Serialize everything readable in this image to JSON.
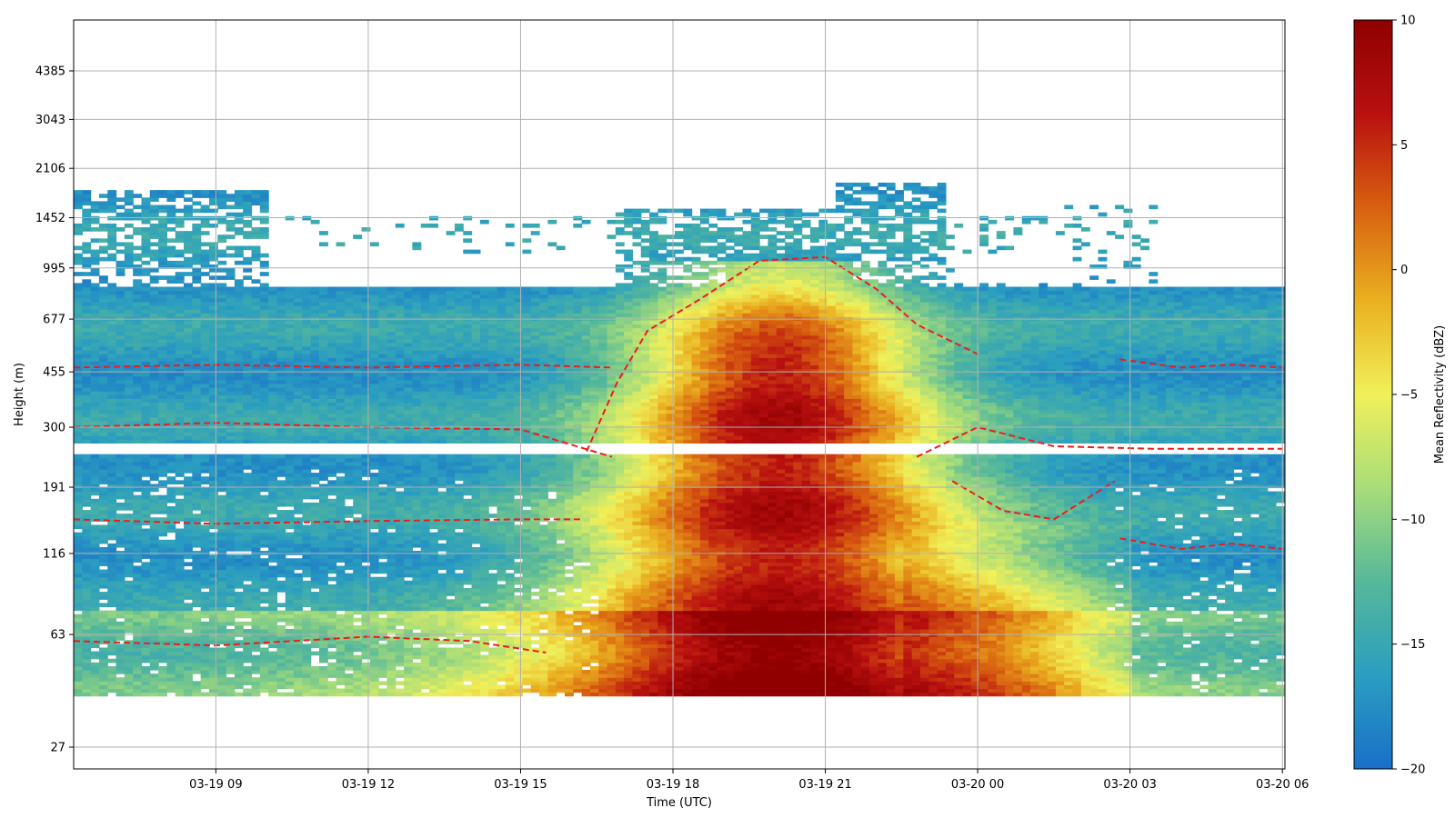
{
  "chart_data": {
    "type": "heatmap",
    "title": "",
    "xlabel": "Time (UTC)",
    "ylabel": "Height (m)",
    "x_ticks": [
      "03-19 09",
      "03-19 12",
      "03-19 15",
      "03-19 18",
      "03-19 21",
      "03-20 00",
      "03-20 03",
      "03-20 06"
    ],
    "x_tick_hours": [
      9,
      12,
      15,
      18,
      21,
      24,
      27,
      30
    ],
    "xlim_hours": [
      6.2,
      30.05
    ],
    "y_ticks": [
      27,
      63,
      116,
      191,
      300,
      455,
      677,
      995,
      1452,
      2106,
      3043,
      4385
    ],
    "y_scale": "log",
    "grid": true,
    "colorbar": {
      "label": "Mean Reflectivity (dBZ)",
      "ticks": [
        10,
        5,
        0,
        -5,
        -10,
        -15,
        -20
      ],
      "range": [
        -20,
        10
      ],
      "colormap": [
        "#1a6fc8",
        "#2a9ec0",
        "#56b89a",
        "#a8dd7a",
        "#f0f05a",
        "#eab020",
        "#d86010",
        "#b81010",
        "#900000"
      ]
    },
    "contour_style": {
      "color": "#ee1c1c",
      "linestyle": "dashed"
    },
    "time_range_hours": [
      6.2,
      30.0
    ],
    "height_range_m": [
      40,
      2000
    ],
    "gap_band_m": [
      248,
      270
    ],
    "background_dbz": -16,
    "features": [
      {
        "name": "main precipitation core",
        "center_hour": 20.0,
        "peak_dbz": 7,
        "top_m": 1050
      },
      {
        "name": "high cloud layer",
        "span_hours": [
          21.5,
          23.5
        ],
        "top_m": 1900
      },
      {
        "name": "low-level drizzle",
        "span_hours": [
          23.5,
          27.0
        ],
        "heights_m": [
          40,
          150
        ],
        "dbz": -8
      }
    ]
  }
}
